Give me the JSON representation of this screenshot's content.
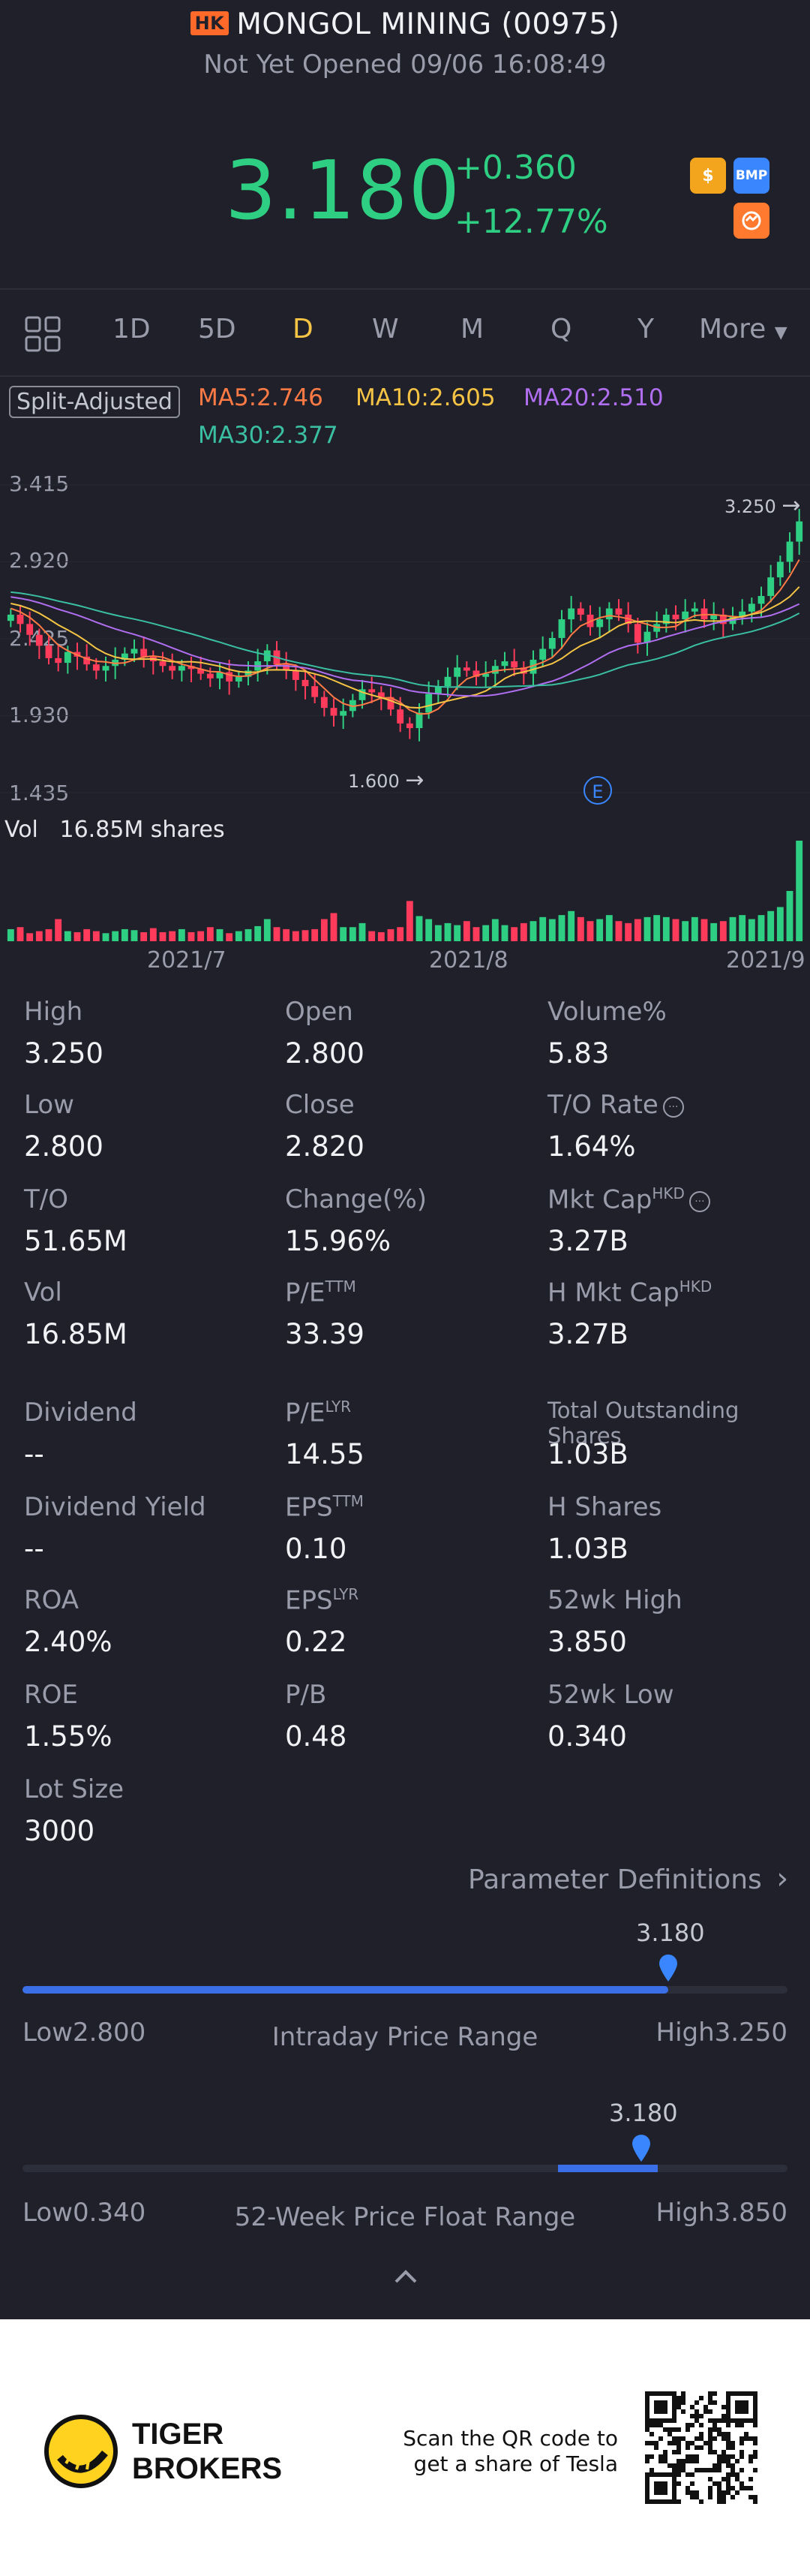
{
  "header": {
    "market_badge": "HK",
    "title": "MONGOL MINING (00975)",
    "status": "Not Yet Opened 09/06 16:08:49",
    "price": "3.180",
    "change": "+0.360",
    "change_pct": "+12.77%",
    "icons": [
      "dollar-icon",
      "bmp-icon",
      "swap-icon"
    ],
    "icon_bmp_text": "BMP",
    "icon_dollar_text": "$"
  },
  "tabs": {
    "items": [
      "1D",
      "5D",
      "D",
      "W",
      "M",
      "Q",
      "Y"
    ],
    "active": "D",
    "more": "More"
  },
  "chart_legend": {
    "split": "Split-Adjusted",
    "ma5": "MA5:2.746",
    "ma10": "MA10:2.605",
    "ma20": "MA20:2.510",
    "ma30": "MA30:2.377",
    "colors": {
      "ma5": "#ff7a45",
      "ma10": "#f6c445",
      "ma20": "#b06ef0",
      "ma30": "#3bbfa3",
      "up": "#ff3b5c",
      "down": "#2ecf82"
    }
  },
  "chart_data": {
    "type": "candlestick",
    "y_ticks": [
      "3.415",
      "2.920",
      "2.425",
      "1.930",
      "1.435"
    ],
    "ylim": [
      1.435,
      3.415
    ],
    "x_ticks": [
      "2021/7",
      "2021/8",
      "2021/9"
    ],
    "high_marker": "3.250",
    "low_marker": "1.600",
    "event_marker": "E",
    "vol_label": "Vol",
    "vol_value": "16.85M shares",
    "closes": [
      2.58,
      2.52,
      2.45,
      2.38,
      2.3,
      2.27,
      2.34,
      2.31,
      2.26,
      2.22,
      2.25,
      2.29,
      2.33,
      2.36,
      2.31,
      2.28,
      2.25,
      2.22,
      2.25,
      2.23,
      2.2,
      2.17,
      2.21,
      2.15,
      2.18,
      2.22,
      2.28,
      2.35,
      2.26,
      2.22,
      2.16,
      2.12,
      2.05,
      1.98,
      1.93,
      1.96,
      2.03,
      2.1,
      2.08,
      2.05,
      1.97,
      1.88,
      1.85,
      1.95,
      2.07,
      2.12,
      2.18,
      2.24,
      2.22,
      2.18,
      2.2,
      2.25,
      2.28,
      2.24,
      2.2,
      2.29,
      2.36,
      2.43,
      2.55,
      2.62,
      2.58,
      2.5,
      2.55,
      2.62,
      2.58,
      2.52,
      2.4,
      2.47,
      2.52,
      2.58,
      2.55,
      2.6,
      2.62,
      2.55,
      2.58,
      2.52,
      2.57,
      2.6,
      2.65,
      2.7,
      2.82,
      2.92,
      3.05,
      3.18
    ],
    "volumes": [
      0.12,
      0.14,
      0.08,
      0.1,
      0.12,
      0.22,
      0.1,
      0.09,
      0.12,
      0.1,
      0.08,
      0.1,
      0.12,
      0.11,
      0.09,
      0.13,
      0.09,
      0.1,
      0.12,
      0.09,
      0.1,
      0.14,
      0.12,
      0.08,
      0.1,
      0.12,
      0.15,
      0.22,
      0.14,
      0.12,
      0.1,
      0.11,
      0.12,
      0.22,
      0.28,
      0.14,
      0.14,
      0.18,
      0.1,
      0.09,
      0.12,
      0.14,
      0.4,
      0.25,
      0.22,
      0.16,
      0.18,
      0.16,
      0.2,
      0.14,
      0.16,
      0.22,
      0.16,
      0.14,
      0.18,
      0.2,
      0.24,
      0.22,
      0.26,
      0.3,
      0.24,
      0.2,
      0.22,
      0.26,
      0.2,
      0.18,
      0.22,
      0.24,
      0.26,
      0.24,
      0.22,
      0.2,
      0.24,
      0.22,
      0.18,
      0.2,
      0.24,
      0.26,
      0.22,
      0.26,
      0.3,
      0.34,
      0.5,
      1.0
    ]
  },
  "stats": [
    {
      "label": "High",
      "value": "3.250"
    },
    {
      "label": "Open",
      "value": "2.800"
    },
    {
      "label": "Volume%",
      "value": "5.83"
    },
    {
      "label": "Low",
      "value": "2.800"
    },
    {
      "label": "Close",
      "value": "2.820"
    },
    {
      "label": "T/O Rate",
      "value": "1.64%"
    },
    {
      "label": "T/O",
      "value": "51.65M"
    },
    {
      "label": "Change(%)",
      "value": "15.96%"
    },
    {
      "label": "Mkt Cap",
      "label_sup": "HKD",
      "value": "3.27B"
    },
    {
      "label": "Vol",
      "value": "16.85M"
    },
    {
      "label": "P/E",
      "label_sup": "TTM",
      "value": "33.39"
    },
    {
      "label": "H Mkt Cap",
      "label_sup": "HKD",
      "value": "3.27B"
    },
    {
      "label": "Dividend",
      "value": "--"
    },
    {
      "label": "P/E",
      "label_sup": "LYR",
      "value": "14.55"
    },
    {
      "label": "Total Outstanding Shares",
      "value": "1.03B"
    },
    {
      "label": "Dividend Yield",
      "value": "--"
    },
    {
      "label": "EPS",
      "label_sup": "TTM",
      "value": "0.10"
    },
    {
      "label": "H Shares",
      "value": "1.03B"
    },
    {
      "label": "ROA",
      "value": "2.40%"
    },
    {
      "label": "EPS",
      "label_sup": "LYR",
      "value": "0.22"
    },
    {
      "label": "52wk High",
      "value": "3.850"
    },
    {
      "label": "ROE",
      "value": "1.55%"
    },
    {
      "label": "P/B",
      "value": "0.48"
    },
    {
      "label": "52wk Low",
      "value": "0.340"
    },
    {
      "label": "Lot Size",
      "value": "3000"
    }
  ],
  "param_link": "Parameter Definitions",
  "intraday_range": {
    "current": "3.180",
    "low_label": "Low2.800",
    "high_label": "High3.250",
    "title": "Intraday Price Range",
    "fill_fraction": 0.844
  },
  "week52_range": {
    "current": "3.180",
    "low_label": "Low0.340",
    "high_label": "High3.850",
    "title": "52-Week Price Float Range",
    "fill_start_fraction": 0.7,
    "fill_end_fraction": 0.83
  },
  "footer": {
    "brand_line1": "TIGER",
    "brand_line2": "BROKERS",
    "qr_text_line1": "Scan the QR code to",
    "qr_text_line2": "get a share of Tesla"
  }
}
